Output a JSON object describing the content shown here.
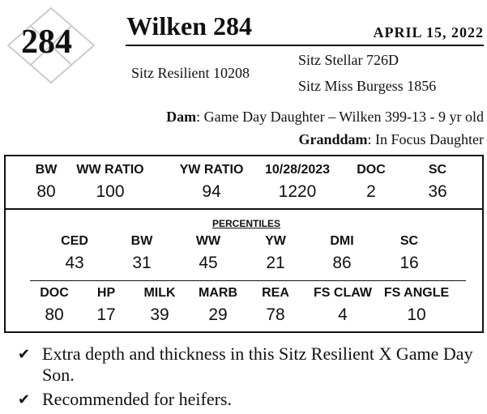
{
  "lot": "284",
  "name": "Wilken 284",
  "date": "APRIL 15, 2022",
  "pedigree": {
    "sire": "Sitz Resilient 10208",
    "sire_sire": "Sitz Stellar 726D",
    "sire_dam": "Sitz Miss Burgess 1856",
    "dam_label": "Dam",
    "dam": ": Game Day Daughter – Wilken 399-13 - 9 yr old",
    "granddam_label": "Granddam",
    "granddam": ": In Focus Daughter"
  },
  "table": {
    "measures": {
      "headers": [
        "BW",
        "WW RATIO",
        "YW RATIO",
        "10/28/2023",
        "DOC",
        "SC"
      ],
      "values": [
        80,
        100,
        94,
        1220,
        2,
        36
      ]
    },
    "percentiles_title": "PERCENTILES",
    "percentiles_1": {
      "headers": [
        "CED",
        "BW",
        "WW",
        "YW",
        "DMI",
        "SC"
      ],
      "values": [
        43,
        31,
        45,
        21,
        86,
        16
      ]
    },
    "percentiles_2": {
      "headers": [
        "DOC",
        "HP",
        "MILK",
        "MARB",
        "REA",
        "FS CLAW",
        "FS ANGLE"
      ],
      "values": [
        80,
        17,
        39,
        29,
        78,
        4,
        10
      ]
    }
  },
  "notes": [
    "Extra depth and thickness in this Sitz Resilient X Game Day Son.",
    "Recommended for heifers."
  ]
}
